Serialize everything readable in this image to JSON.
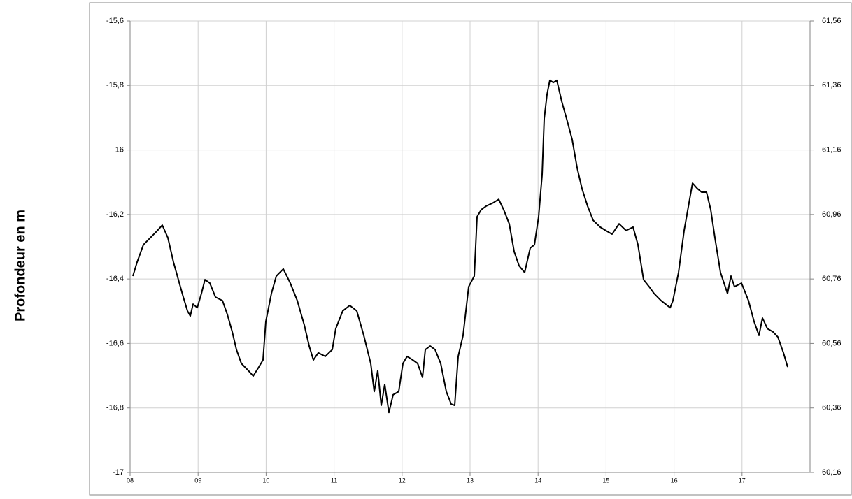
{
  "chart_data": {
    "type": "line",
    "y_label": "Profondeur en m",
    "xlim": [
      8,
      18
    ],
    "xticks": [
      {
        "value": 8,
        "label": "08"
      },
      {
        "value": 9,
        "label": "09"
      },
      10,
      11,
      12,
      13,
      14,
      15,
      16,
      17
    ],
    "ylim": [
      -17,
      -15.6
    ],
    "yticks": [
      -17,
      {
        "value": -16.8,
        "label": "-16,8"
      },
      {
        "value": -16.6,
        "label": "-16,6"
      },
      {
        "value": -16.4,
        "label": "-16,4"
      },
      {
        "value": -16.2,
        "label": "-16,2"
      },
      -16,
      {
        "value": -15.8,
        "label": "-15,8"
      },
      {
        "value": -15.6,
        "label": "-15,6"
      }
    ],
    "y2lim": [
      60.16,
      61.56
    ],
    "y2ticks": [
      {
        "value": 60.16,
        "label": "60,16"
      },
      {
        "value": 60.36,
        "label": "60,36"
      },
      {
        "value": 60.56,
        "label": "60,56"
      },
      {
        "value": 60.76,
        "label": "60,76"
      },
      {
        "value": 60.96,
        "label": "60,96"
      },
      {
        "value": 61.16,
        "label": "61,16"
      },
      {
        "value": 61.36,
        "label": "61,36"
      },
      {
        "value": 61.56,
        "label": "61,56"
      }
    ],
    "grid": true,
    "x": [
      8.041,
      8.103,
      8.195,
      8.298,
      8.401,
      8.473,
      8.556,
      8.638,
      8.71,
      8.782,
      8.844,
      8.885,
      8.926,
      8.988,
      9.049,
      9.101,
      9.173,
      9.255,
      9.358,
      9.43,
      9.502,
      9.564,
      9.636,
      9.739,
      9.811,
      9.893,
      9.955,
      9.996,
      10.078,
      10.15,
      10.253,
      10.356,
      10.459,
      10.562,
      10.634,
      10.695,
      10.767,
      10.87,
      10.973,
      11.025,
      11.128,
      11.23,
      11.333,
      11.436,
      11.539,
      11.591,
      11.642,
      11.693,
      11.745,
      11.807,
      11.868,
      11.951,
      12.012,
      12.074,
      12.156,
      12.228,
      12.3,
      12.342,
      12.414,
      12.486,
      12.568,
      12.65,
      12.722,
      12.774,
      12.825,
      12.897,
      12.979,
      13.062,
      13.103,
      13.165,
      13.237,
      13.34,
      13.422,
      13.494,
      13.576,
      13.648,
      13.72,
      13.802,
      13.885,
      13.947,
      14.008,
      14.06,
      14.091,
      14.132,
      14.173,
      14.224,
      14.276,
      14.348,
      14.42,
      14.502,
      14.574,
      14.646,
      14.728,
      14.811,
      14.914,
      14.996,
      15.088,
      15.191,
      15.294,
      15.397,
      15.469,
      15.551,
      15.634,
      15.706,
      15.809,
      15.942,
      15.984,
      16.066,
      16.148,
      16.22,
      16.272,
      16.344,
      16.405,
      16.477,
      16.539,
      16.601,
      16.683,
      16.786,
      16.837,
      16.889,
      16.992,
      17.095,
      17.177,
      17.249,
      17.3,
      17.372,
      17.455,
      17.527,
      17.609,
      17.671
    ],
    "series": [
      {
        "color": "#000000",
        "values": [
          -16.391,
          -16.348,
          -16.294,
          -16.272,
          -16.25,
          -16.233,
          -16.272,
          -16.348,
          -16.402,
          -16.456,
          -16.499,
          -16.515,
          -16.478,
          -16.489,
          -16.445,
          -16.402,
          -16.413,
          -16.456,
          -16.467,
          -16.51,
          -16.564,
          -16.619,
          -16.662,
          -16.684,
          -16.701,
          -16.673,
          -16.651,
          -16.532,
          -16.445,
          -16.391,
          -16.369,
          -16.413,
          -16.467,
          -16.543,
          -16.608,
          -16.651,
          -16.629,
          -16.64,
          -16.619,
          -16.554,
          -16.499,
          -16.482,
          -16.499,
          -16.575,
          -16.662,
          -16.749,
          -16.684,
          -16.792,
          -16.727,
          -16.814,
          -16.759,
          -16.749,
          -16.662,
          -16.64,
          -16.651,
          -16.662,
          -16.705,
          -16.619,
          -16.608,
          -16.619,
          -16.662,
          -16.749,
          -16.788,
          -16.792,
          -16.64,
          -16.575,
          -16.424,
          -16.391,
          -16.207,
          -16.185,
          -16.174,
          -16.164,
          -16.153,
          -16.185,
          -16.229,
          -16.315,
          -16.359,
          -16.38,
          -16.304,
          -16.294,
          -16.207,
          -16.077,
          -15.903,
          -15.828,
          -15.784,
          -15.791,
          -15.784,
          -15.849,
          -15.903,
          -15.968,
          -16.055,
          -16.12,
          -16.174,
          -16.218,
          -16.239,
          -16.25,
          -16.261,
          -16.229,
          -16.25,
          -16.239,
          -16.294,
          -16.402,
          -16.424,
          -16.445,
          -16.467,
          -16.489,
          -16.467,
          -16.38,
          -16.25,
          -16.164,
          -16.103,
          -16.12,
          -16.131,
          -16.131,
          -16.185,
          -16.272,
          -16.38,
          -16.445,
          -16.391,
          -16.424,
          -16.413,
          -16.467,
          -16.532,
          -16.575,
          -16.521,
          -16.554,
          -16.564,
          -16.58,
          -16.629,
          -16.673
        ]
      }
    ]
  }
}
